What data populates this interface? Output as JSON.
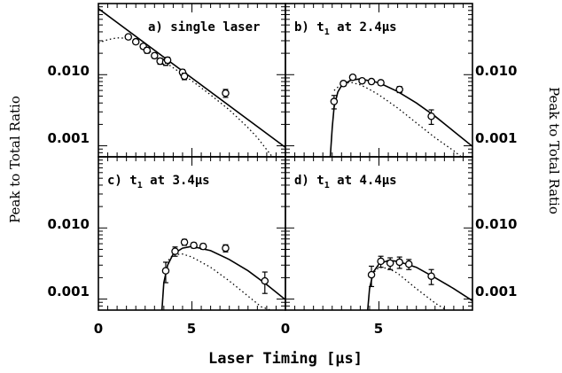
{
  "chart_data": {
    "type": "scatter",
    "xlabel": "Laser Timing [μs]",
    "ylabel": "Peak to Total Ratio",
    "ylabel_right": "Peak to Total Ratio",
    "yscale": "log",
    "xlim": [
      0,
      10
    ],
    "ylim": [
      0.0007,
      0.1
    ],
    "y_ticks": [
      0.001,
      0.01
    ],
    "y_tick_labels": [
      "0.001",
      "0.010"
    ],
    "x_ticks": [
      0,
      5
    ],
    "x_tick_labels": [
      "0",
      "5"
    ],
    "panels": [
      {
        "label": "a) single laser",
        "label_parts": [
          "a) single laser"
        ],
        "points": [
          {
            "x": 1.6,
            "y": 0.034,
            "err": 0.002
          },
          {
            "x": 2.0,
            "y": 0.029,
            "err": 0.002
          },
          {
            "x": 2.4,
            "y": 0.025,
            "err": 0.002
          },
          {
            "x": 2.6,
            "y": 0.022,
            "err": 0.002
          },
          {
            "x": 3.0,
            "y": 0.0185,
            "err": 0.0015
          },
          {
            "x": 3.3,
            "y": 0.0155,
            "err": 0.0015
          },
          {
            "x": 3.6,
            "y": 0.015,
            "err": 0.0015
          },
          {
            "x": 3.7,
            "y": 0.016,
            "err": 0.0015
          },
          {
            "x": 4.5,
            "y": 0.0108,
            "err": 0.001
          },
          {
            "x": 4.6,
            "y": 0.0095,
            "err": 0.001
          },
          {
            "x": 6.8,
            "y": 0.0055,
            "err": 0.0007
          }
        ],
        "solid": {
          "x": [
            0.0,
            10.0
          ],
          "y": [
            0.085,
            0.00095
          ]
        },
        "dotted": {
          "x": [
            0.0,
            0.5,
            1.0,
            1.5,
            2.0,
            3.0,
            4.0,
            5.0,
            6.0,
            7.0,
            8.0,
            8.5,
            9.0,
            9.3
          ],
          "y": [
            0.028,
            0.031,
            0.033,
            0.0325,
            0.029,
            0.019,
            0.0125,
            0.0082,
            0.0052,
            0.0032,
            0.0018,
            0.0013,
            0.00088,
            0.0007
          ]
        }
      },
      {
        "label": "b) t1 at 2.4μs",
        "label_parts": [
          "b) t",
          "1",
          " at 2.4μs"
        ],
        "points": [
          {
            "x": 2.6,
            "y": 0.0042,
            "err": 0.0009
          },
          {
            "x": 3.1,
            "y": 0.0075,
            "err": 0.0006
          },
          {
            "x": 3.6,
            "y": 0.0092,
            "err": 0.0006
          },
          {
            "x": 4.1,
            "y": 0.0082,
            "err": 0.0006
          },
          {
            "x": 4.6,
            "y": 0.008,
            "err": 0.0006
          },
          {
            "x": 5.1,
            "y": 0.0077,
            "err": 0.0006
          },
          {
            "x": 6.1,
            "y": 0.0062,
            "err": 0.0006
          },
          {
            "x": 7.8,
            "y": 0.0026,
            "err": 0.0006
          }
        ],
        "solid": {
          "x": [
            2.4,
            2.5,
            2.6,
            2.8,
            3.0,
            3.5,
            4.0,
            5.0,
            6.0,
            7.0,
            8.0,
            9.0,
            10.0
          ],
          "y": [
            0.0007,
            0.0018,
            0.0035,
            0.0057,
            0.007,
            0.0084,
            0.0087,
            0.0077,
            0.0058,
            0.004,
            0.0026,
            0.0016,
            0.00098
          ]
        },
        "dotted": {
          "x": [
            2.6,
            3.0,
            3.5,
            4.0,
            4.5,
            5.0,
            6.0,
            7.0,
            8.0,
            9.0,
            9.4
          ],
          "y": [
            0.006,
            0.0074,
            0.0078,
            0.0072,
            0.0062,
            0.0052,
            0.0034,
            0.0021,
            0.0013,
            0.00085,
            0.0007
          ]
        }
      },
      {
        "label": "c) t1 at 3.4μs",
        "label_parts": [
          "c) t",
          "1",
          " at 3.4μs"
        ],
        "points": [
          {
            "x": 3.6,
            "y": 0.0025,
            "err": 0.0008
          },
          {
            "x": 4.1,
            "y": 0.0047,
            "err": 0.0007
          },
          {
            "x": 4.6,
            "y": 0.0063,
            "err": 0.0006
          },
          {
            "x": 5.1,
            "y": 0.0057,
            "err": 0.0005
          },
          {
            "x": 5.6,
            "y": 0.0055,
            "err": 0.0005
          },
          {
            "x": 6.8,
            "y": 0.0052,
            "err": 0.0006
          },
          {
            "x": 8.9,
            "y": 0.0018,
            "err": 0.0006
          }
        ],
        "solid": {
          "x": [
            3.4,
            3.5,
            3.7,
            4.0,
            4.5,
            5.0,
            6.0,
            7.0,
            8.0,
            9.0,
            10.0
          ],
          "y": [
            0.0007,
            0.0017,
            0.003,
            0.0043,
            0.0052,
            0.0055,
            0.0048,
            0.0036,
            0.0025,
            0.0016,
            0.00098
          ]
        },
        "dotted": {
          "x": [
            3.6,
            4.0,
            4.5,
            5.0,
            6.0,
            7.0,
            8.0,
            8.7,
            9.2
          ],
          "y": [
            0.0032,
            0.0042,
            0.0043,
            0.0039,
            0.0028,
            0.0018,
            0.0011,
            0.00078,
            0.0007
          ]
        }
      },
      {
        "label": "d) t1 at 4.4μs",
        "label_parts": [
          "d) t",
          "1",
          " at 4.4μs"
        ],
        "points": [
          {
            "x": 4.6,
            "y": 0.0022,
            "err": 0.0007
          },
          {
            "x": 5.1,
            "y": 0.0034,
            "err": 0.0006
          },
          {
            "x": 5.6,
            "y": 0.0032,
            "err": 0.0006
          },
          {
            "x": 6.1,
            "y": 0.0033,
            "err": 0.0006
          },
          {
            "x": 6.6,
            "y": 0.0031,
            "err": 0.0005
          },
          {
            "x": 7.8,
            "y": 0.0021,
            "err": 0.0005
          }
        ],
        "solid": {
          "x": [
            4.4,
            4.5,
            4.7,
            5.0,
            5.5,
            6.0,
            7.0,
            8.0,
            9.0,
            10.0
          ],
          "y": [
            0.0007,
            0.0014,
            0.0024,
            0.0031,
            0.0035,
            0.0034,
            0.0028,
            0.002,
            0.0014,
            0.00095
          ]
        },
        "dotted": {
          "x": [
            4.6,
            5.0,
            5.5,
            6.0,
            6.5,
            7.0,
            8.0,
            8.6
          ],
          "y": [
            0.0022,
            0.0028,
            0.0027,
            0.0023,
            0.0018,
            0.0014,
            0.00088,
            0.0007
          ]
        }
      }
    ]
  }
}
